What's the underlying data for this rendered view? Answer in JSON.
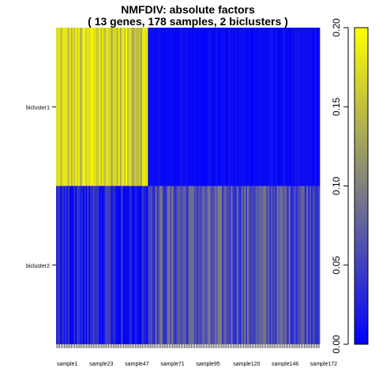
{
  "chart_data": {
    "type": "heatmap",
    "title": "NMFDIV: absolute factors",
    "subtitle": "( 13  genes,  178  samples,  2  biclusters )",
    "rows": [
      "bicluster1",
      "bicluster2"
    ],
    "n_samples": 178,
    "sample_prefix": "sample",
    "x_tick_labels": [
      "sample1",
      "sample23",
      "sample47",
      "sample71",
      "sample95",
      "sample120",
      "sample146",
      "sample172"
    ],
    "colorbar": {
      "range": [
        0,
        0.2
      ],
      "tick_labels": [
        "0.00",
        "0.05",
        "0.10",
        "0.15",
        "0.20"
      ],
      "colors": [
        "#0000ff",
        "#808080",
        "#ffff00"
      ]
    },
    "value_pattern": {
      "bicluster1_high_until_sample": 62,
      "bicluster1_high_range": [
        0.09,
        0.2
      ],
      "bicluster1_low_range": [
        0.0,
        0.015
      ],
      "bicluster2_range": [
        0.0,
        0.11
      ]
    }
  }
}
